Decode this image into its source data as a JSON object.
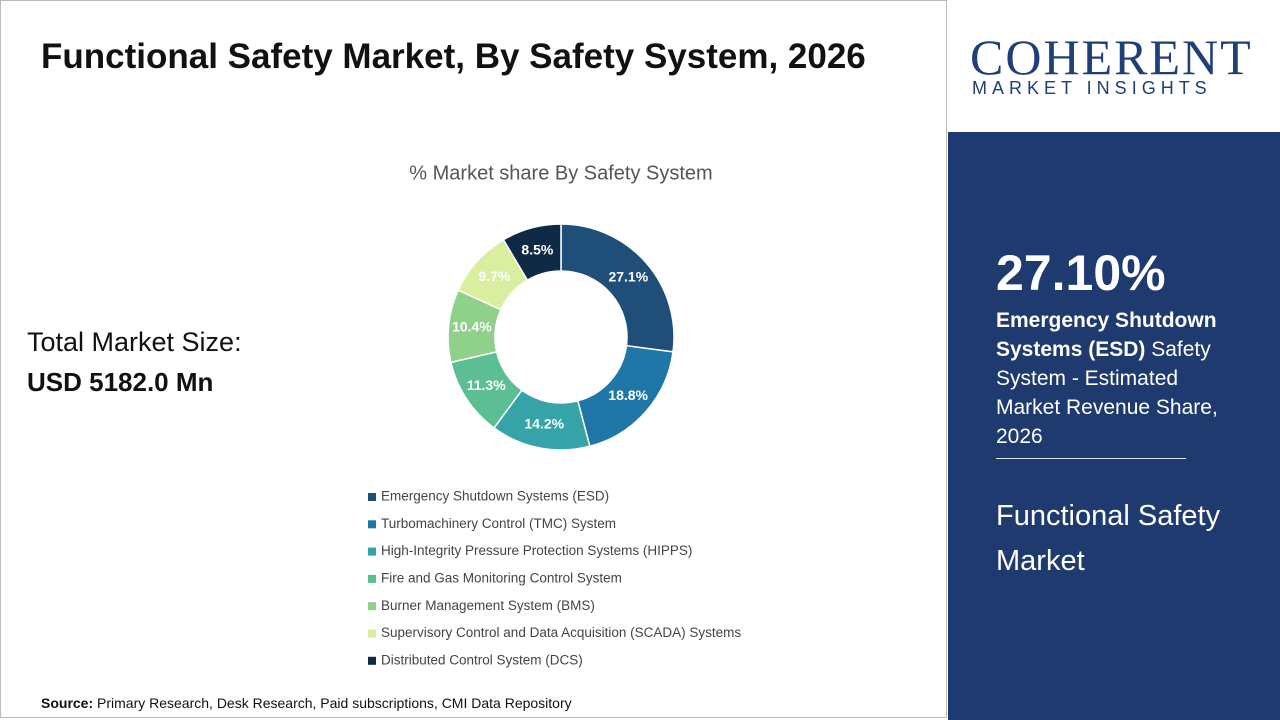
{
  "header": {
    "title": "Functional Safety Market, By Safety System, 2026"
  },
  "summary": {
    "label": "Total Market Size:",
    "value": "USD 5182.0 Mn"
  },
  "source": {
    "label": "Source:",
    "text": "Primary Research, Desk Research, Paid subscriptions, CMI Data Repository"
  },
  "logo": {
    "name": "COHERENT",
    "tagline": "MARKET INSIGHTS"
  },
  "sidebar": {
    "highlight": "27.10%",
    "segment": "Emergency Shutdown Systems (ESD)",
    "description": "Safety System - Estimated Market Revenue Share, 2026",
    "market": "Functional Safety Market"
  },
  "chart_data": {
    "type": "pie",
    "title": "% Market share By Safety System",
    "categories": [
      "Emergency Shutdown Systems (ESD)",
      "Turbomachinery Control (TMC) System",
      "High-Integrity Pressure Protection Systems (HIPPS)",
      "Fire and Gas Monitoring Control System",
      "Burner Management System (BMS)",
      "Supervisory Control and Data Acquisition (SCADA) Systems",
      "Distributed Control System (DCS)"
    ],
    "values": [
      27.1,
      18.8,
      14.2,
      11.3,
      10.4,
      9.7,
      8.5
    ],
    "value_labels": [
      "27.1%",
      "18.8%",
      "14.2%",
      "11.3%",
      "10.4%",
      "9.7%",
      "8.5%"
    ],
    "colors": [
      "#1f4e79",
      "#1f77a8",
      "#36a3a8",
      "#5cbf94",
      "#8fd18a",
      "#d9ef9f",
      "#0f2a44"
    ],
    "donut": true
  }
}
